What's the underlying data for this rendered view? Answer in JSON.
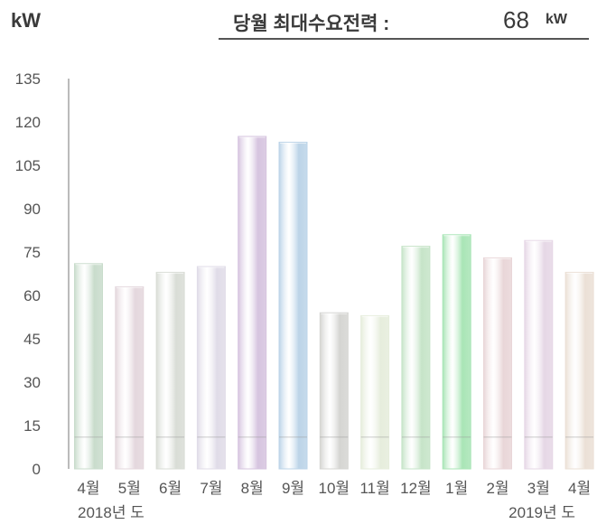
{
  "header": {
    "unit_label": "kW",
    "title": "당월 최대수요전력 :",
    "value": "68",
    "value_unit": "kW"
  },
  "chart_data": {
    "type": "bar",
    "categories": [
      "4월",
      "5월",
      "6월",
      "7월",
      "8월",
      "9월",
      "10월",
      "11월",
      "12월",
      "1월",
      "2월",
      "3월",
      "4월"
    ],
    "values": [
      71,
      63,
      68,
      70,
      115,
      113,
      54,
      53,
      77,
      81,
      73,
      79,
      68
    ],
    "ylabel": "kW",
    "yticks": [
      0,
      15,
      30,
      45,
      60,
      75,
      90,
      105,
      120,
      135
    ],
    "ylim": [
      0,
      135
    ],
    "year_labels": [
      "2018년 도",
      "2019년 도"
    ],
    "colors": [
      "#c9dccc",
      "#e4d7dd",
      "#d9ddd6",
      "#e0dce8",
      "#d6c4df",
      "#bcd4e8",
      "#d5d5d2",
      "#e6eddc",
      "#c6e4c8",
      "#a9e5b6",
      "#e9d6d8",
      "#e6d7e6",
      "#ebe0d6"
    ],
    "grid": false
  }
}
